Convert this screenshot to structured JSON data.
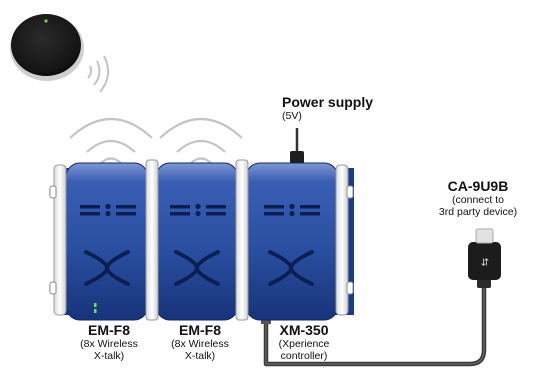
{
  "modules": [
    {
      "name": "EM-F8",
      "desc_line1": "(8x Wireless",
      "desc_line2": "X-talk)"
    },
    {
      "name": "EM-F8",
      "desc_line1": "(8x Wireless",
      "desc_line2": "X-talk)"
    },
    {
      "name": "XM-350",
      "desc_line1": "(Xperience",
      "desc_line2": "controller)"
    }
  ],
  "power_supply": {
    "name": "Power supply",
    "spec": "(5V)"
  },
  "cable": {
    "name": "CA-9U9B",
    "desc_line1": "(connect to",
    "desc_line2": "3rd party device)"
  },
  "sensor_icon": "wireless-sensor-icon",
  "colors": {
    "module_blue": "#2a4fa0",
    "module_dark": "#162f72",
    "rail_white": "#f4f4f4",
    "cable_gray": "#3a3a3a",
    "led_green": "#6fe05a",
    "wave_gray": "#c4c4c4"
  }
}
